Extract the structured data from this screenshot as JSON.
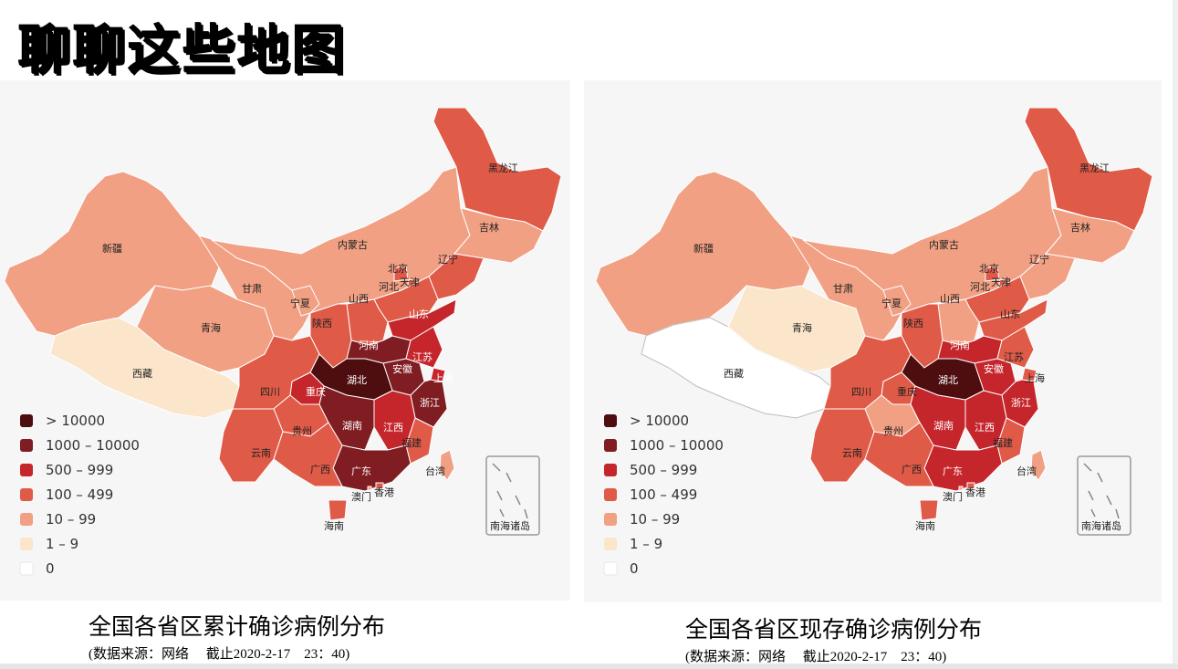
{
  "slide": {
    "title": "聊聊这些地图"
  },
  "legend": [
    {
      "label": "> 10000",
      "color": "#4e0d0f"
    },
    {
      "label": "1000 – 10000",
      "color": "#7f1d22"
    },
    {
      "label": "500 – 999",
      "color": "#c5262c"
    },
    {
      "label": "100 – 499",
      "color": "#e05a48"
    },
    {
      "label": "10 – 99",
      "color": "#f1a083"
    },
    {
      "label": "1 – 9",
      "color": "#fbe6cb"
    },
    {
      "label": "0",
      "color": "#ffffff"
    }
  ],
  "inset_label": "南海诸岛",
  "maps": [
    {
      "caption": "全国各省区累计确诊病例分布",
      "source": "(数据来源：网络　 截止2020-2-17　23：40)",
      "levels": {
        "xinjiang": 4,
        "xizang": 5,
        "qinghai": 4,
        "gansu": 4,
        "neimenggu": 4,
        "heilongjiang": 3,
        "jilin": 4,
        "liaoning": 3,
        "beijing": 3,
        "tianjin": 3,
        "hebei": 3,
        "shanxi": 3,
        "shaanxi": 3,
        "ningxia": 4,
        "shandong": 2,
        "henan": 1,
        "jiangsu": 2,
        "anhui": 1,
        "shanghai": 2,
        "zhejiang": 1,
        "hubei": 0,
        "chongqing": 2,
        "sichuan": 3,
        "guizhou": 3,
        "yunnan": 3,
        "hunan": 1,
        "jiangxi": 2,
        "fujian": 3,
        "guangdong": 1,
        "guangxi": 3,
        "hainan": 3,
        "taiwan": 4,
        "xianggang": 3,
        "aomen": 4
      },
      "labels": {
        "xinjiang": "新疆",
        "xizang": "西藏",
        "qinghai": "青海",
        "gansu": "甘肃",
        "neimenggu": "内蒙古",
        "heilongjiang": "黑龙江",
        "jilin": "吉林",
        "liaoning": "辽宁",
        "beijing": "北京",
        "tianjin": "天津",
        "hebei": "河北",
        "shanxi": "山西",
        "shaanxi": "陕西",
        "ningxia": "宁夏",
        "shandong": "山东",
        "henan": "河南",
        "jiangsu": "江苏",
        "anhui": "安徽",
        "shanghai": "上海",
        "zhejiang": "浙江",
        "hubei": "湖北",
        "chongqing": "重庆",
        "sichuan": "四川",
        "guizhou": "贵州",
        "yunnan": "云南",
        "hunan": "湖南",
        "jiangxi": "江西",
        "fujian": "福建",
        "guangdong": "广东",
        "guangxi": "广西",
        "hainan": "海南",
        "taiwan": "台湾",
        "xianggang": "香港",
        "aomen": "澳门"
      }
    },
    {
      "caption": "全国各省区现存确诊病例分布",
      "source": "(数据来源：网络　 截止2020-2-17　23：40)",
      "levels": {
        "xinjiang": 4,
        "xizang": 6,
        "qinghai": 5,
        "gansu": 4,
        "neimenggu": 4,
        "heilongjiang": 3,
        "jilin": 4,
        "liaoning": 4,
        "beijing": 3,
        "tianjin": 3,
        "hebei": 3,
        "shanxi": 4,
        "shaanxi": 3,
        "ningxia": 4,
        "shandong": 3,
        "henan": 2,
        "jiangsu": 3,
        "anhui": 2,
        "shanghai": 3,
        "zhejiang": 2,
        "hubei": 0,
        "chongqing": 3,
        "sichuan": 3,
        "guizhou": 4,
        "yunnan": 3,
        "hunan": 2,
        "jiangxi": 2,
        "fujian": 3,
        "guangdong": 2,
        "guangxi": 3,
        "hainan": 3,
        "taiwan": 4,
        "xianggang": 3,
        "aomen": 4
      },
      "labels": {
        "xinjiang": "新疆",
        "xizang": "西藏",
        "qinghai": "青海",
        "gansu": "甘肃",
        "neimenggu": "内蒙古",
        "heilongjiang": "黑龙江",
        "jilin": "吉林",
        "liaoning": "辽宁",
        "beijing": "北京",
        "tianjin": "天津",
        "hebei": "河北",
        "shanxi": "山西",
        "shaanxi": "陕西",
        "ningxia": "宁夏",
        "shandong": "山东",
        "henan": "河南",
        "jiangsu": "江苏",
        "anhui": "安徽",
        "shanghai": "上海",
        "zhejiang": "浙江",
        "hubei": "湖北",
        "chongqing": "重庆",
        "sichuan": "四川",
        "guizhou": "贵州",
        "yunnan": "云南",
        "hunan": "湖南",
        "jiangxi": "江西",
        "fujian": "福建",
        "guangdong": "广东",
        "guangxi": "广西",
        "hainan": "海南",
        "taiwan": "台湾",
        "xianggang": "香港",
        "aomen": "澳门"
      }
    }
  ]
}
